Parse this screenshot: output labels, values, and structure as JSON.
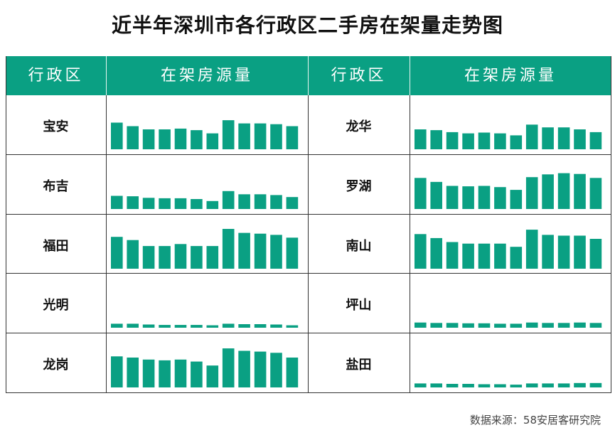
{
  "title": "近半年深圳市各行政区二手房在架量走势图",
  "header": {
    "col1": "行政区",
    "col2": "在架房源量",
    "col3": "行政区",
    "col4": "在架房源量"
  },
  "source": "数据来源：58安居客研究院",
  "colors": {
    "bar": "#0aa083",
    "header_bg": "#0aa083"
  },
  "chart_data": {
    "type": "bar",
    "note_units": "relative listing volume (unlabeled sparkline bars)",
    "ylim": [
      0,
      100
    ],
    "regions": [
      {
        "name": "宝安",
        "values": [
          67,
          58,
          50,
          50,
          52,
          48,
          40,
          73,
          65,
          65,
          63,
          58
        ]
      },
      {
        "name": "布吉",
        "values": [
          33,
          32,
          28,
          27,
          27,
          25,
          20,
          45,
          37,
          37,
          35,
          30
        ]
      },
      {
        "name": "福田",
        "values": [
          80,
          72,
          57,
          57,
          62,
          57,
          57,
          100,
          90,
          88,
          85,
          78
        ]
      },
      {
        "name": "光明",
        "values": [
          10,
          10,
          8,
          7,
          7,
          7,
          6,
          10,
          9,
          9,
          8,
          6
        ]
      },
      {
        "name": "龙岗",
        "values": [
          78,
          75,
          70,
          68,
          70,
          65,
          55,
          98,
          92,
          90,
          87,
          75
        ]
      },
      {
        "name": "龙华",
        "values": [
          50,
          48,
          43,
          40,
          42,
          40,
          35,
          62,
          55,
          55,
          50,
          43
        ]
      },
      {
        "name": "罗湖",
        "values": [
          78,
          68,
          58,
          57,
          58,
          55,
          48,
          80,
          87,
          90,
          88,
          78
        ]
      },
      {
        "name": "南山",
        "values": [
          87,
          77,
          67,
          63,
          63,
          63,
          55,
          98,
          85,
          83,
          83,
          75
        ]
      },
      {
        "name": "坪山",
        "values": [
          13,
          12,
          12,
          11,
          11,
          10,
          10,
          13,
          12,
          12,
          13,
          12
        ]
      },
      {
        "name": "盐田",
        "values": [
          10,
          10,
          9,
          9,
          8,
          8,
          7,
          10,
          10,
          10,
          11,
          11
        ]
      }
    ]
  }
}
